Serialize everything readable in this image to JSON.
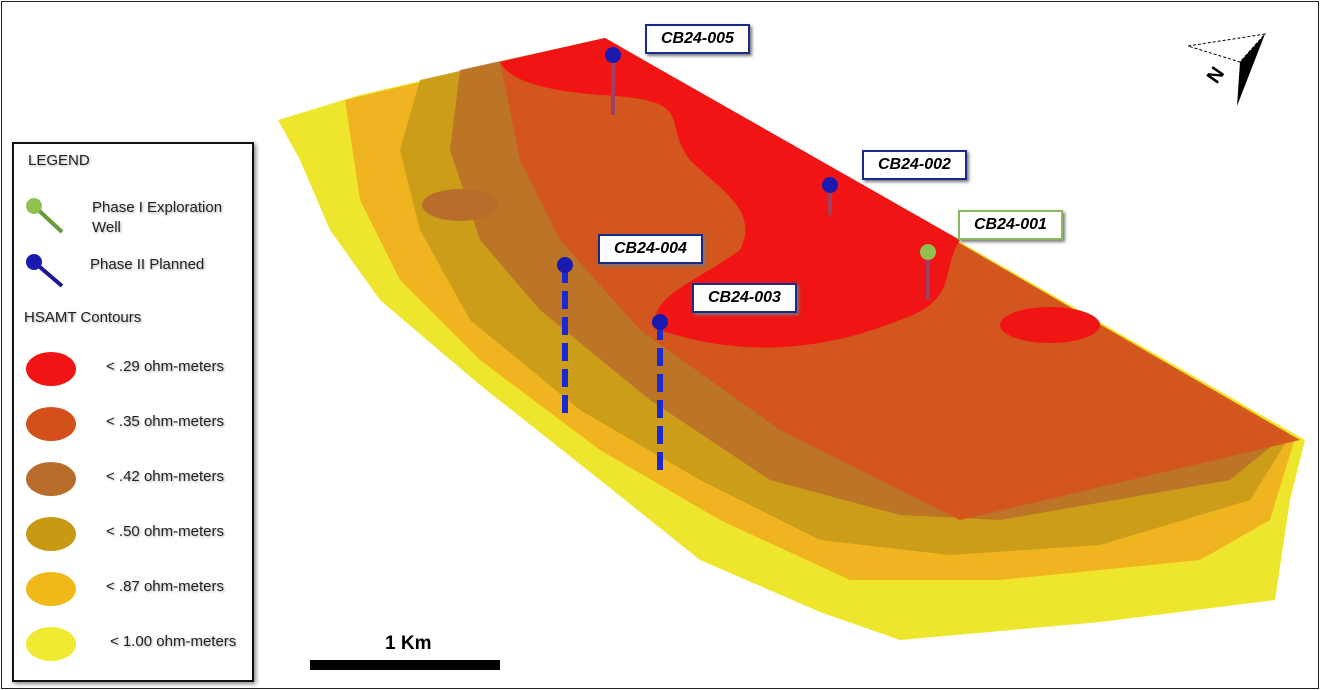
{
  "legend": {
    "title": "LEGEND",
    "wells": [
      {
        "label": "Phase I Exploration Well",
        "color": "#8fc050",
        "icon": "green-well-pin-icon"
      },
      {
        "label": "Phase II Planned",
        "color": "#1a1ab0",
        "icon": "blue-well-pin-icon"
      }
    ],
    "contours_title": "HSAMT Contours",
    "contours": [
      {
        "label": "< .29 ohm-meters",
        "color": "#f01414"
      },
      {
        "label": "< .35 ohm-meters",
        "color": "#d4501a"
      },
      {
        "label": "< .42 ohm-meters",
        "color": "#b86e2a"
      },
      {
        "label": "< .50 ohm-meters",
        "color": "#c89a14"
      },
      {
        "label": "< .87 ohm-meters",
        "color": "#f0b818"
      },
      {
        "label": "< 1.00 ohm-meters",
        "color": "#f0ea30"
      }
    ]
  },
  "wells": [
    {
      "name": "CB24-005",
      "phase": "II"
    },
    {
      "name": "CB24-002",
      "phase": "II"
    },
    {
      "name": "CB24-001",
      "phase": "I"
    },
    {
      "name": "CB24-004",
      "phase": "II"
    },
    {
      "name": "CB24-003",
      "phase": "II"
    }
  ],
  "scale_bar": {
    "label": "1 Km"
  },
  "north_arrow": {
    "label": "N",
    "icon": "north-arrow-icon"
  }
}
